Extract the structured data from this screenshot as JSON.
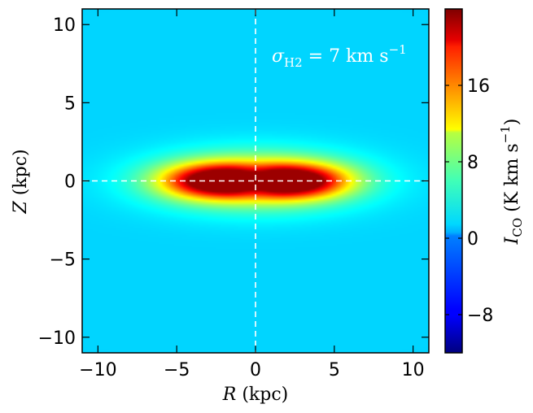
{
  "chart_data": {
    "type": "heatmap",
    "title": "",
    "xlabel_var": "R",
    "xlabel_unit": "(kpc)",
    "ylabel_var": "Z",
    "ylabel_unit": "(kpc)",
    "xlim": [
      -11,
      11
    ],
    "ylim": [
      -11,
      11
    ],
    "xticks": [
      -10,
      -5,
      0,
      5,
      10
    ],
    "yticks": [
      -10,
      -5,
      0,
      5,
      10
    ],
    "xtick_labels": [
      "−10",
      "−5",
      "0",
      "5",
      "10"
    ],
    "ytick_labels": [
      "−10",
      "−5",
      "0",
      "5",
      "10"
    ],
    "grid": false,
    "crosshair": {
      "x": 0,
      "y": 0,
      "style": "dashed",
      "color": "#ffffff"
    },
    "annotation": {
      "symbol": "σ",
      "subscript": "H2",
      "equals": " = 7 ",
      "unit": "km s",
      "unit_exponent": "−1"
    },
    "colorbar": {
      "label_var": "I",
      "label_sub": "CO",
      "label_unit": " (K km s",
      "label_exp": "−1",
      "label_close": ")",
      "min": -12,
      "max": 24,
      "ticks": [
        -8,
        0,
        8,
        16
      ],
      "tick_labels": [
        "−8",
        "0",
        "8",
        "16"
      ],
      "colormap": "jet"
    },
    "field": {
      "background_value": 0,
      "peak_value": 23,
      "components": [
        {
          "r0": -2.5,
          "z0": 0,
          "sigma_r": 2.3,
          "sigma_z": 0.75,
          "amplitude": 22
        },
        {
          "r0": 2.5,
          "z0": 0,
          "sigma_r": 2.3,
          "sigma_z": 0.75,
          "amplitude": 22
        },
        {
          "r0": 0,
          "z0": 0,
          "sigma_r": 4.5,
          "sigma_z": 1.3,
          "amplitude": 10
        }
      ],
      "central_dip": {
        "r0": 0,
        "z0": 0,
        "sigma_r": 0.9,
        "sigma_z": 0.6,
        "amplitude": -7
      }
    }
  }
}
